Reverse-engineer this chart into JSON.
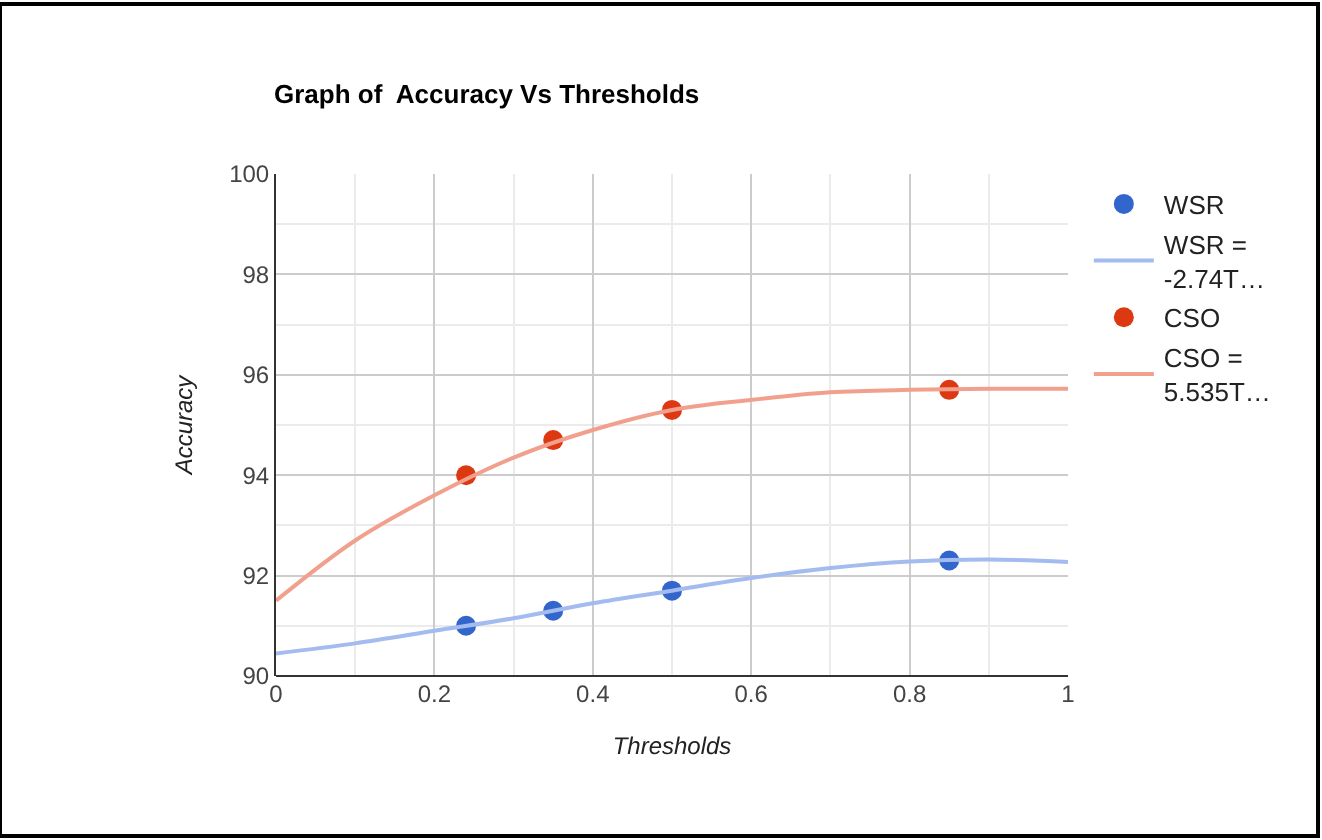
{
  "chart_data": {
    "type": "scatter",
    "title": "Graph of  Accuracy Vs Thresholds",
    "xlabel": "Thresholds",
    "ylabel": "Accuracy",
    "xlim": [
      0,
      1
    ],
    "xticks": [
      0,
      0.2,
      0.4,
      0.6,
      0.8,
      1
    ],
    "ylim": [
      90,
      100
    ],
    "yticks": [
      90,
      92,
      94,
      96,
      98,
      100
    ],
    "grid": true,
    "legend": "right",
    "series": [
      {
        "name": "WSR",
        "marker": "circle",
        "color": "#3366cc",
        "x": [
          0.24,
          0.35,
          0.5,
          0.85
        ],
        "values": [
          91.0,
          91.3,
          91.7,
          92.3
        ]
      },
      {
        "name": "WSR =\n-2.74T…",
        "type": "line",
        "marker": "none",
        "line_style": "solid",
        "color": "#a3bbee",
        "x": [
          0,
          0.1,
          0.2,
          0.3,
          0.4,
          0.5,
          0.6,
          0.7,
          0.8,
          0.9,
          1.0
        ],
        "values": [
          90.45,
          90.65,
          90.9,
          91.15,
          91.45,
          91.7,
          91.95,
          92.15,
          92.28,
          92.32,
          92.27
        ]
      },
      {
        "name": "CSO",
        "marker": "circle",
        "color": "#dc3912",
        "x": [
          0.24,
          0.35,
          0.5,
          0.85
        ],
        "values": [
          94.0,
          94.7,
          95.3,
          95.7
        ]
      },
      {
        "name": "CSO =\n5.535T…",
        "type": "line",
        "marker": "none",
        "line_style": "solid",
        "color": "#f2a08e",
        "x": [
          0,
          0.1,
          0.2,
          0.3,
          0.4,
          0.5,
          0.6,
          0.7,
          0.8,
          0.9,
          1.0
        ],
        "values": [
          91.5,
          92.7,
          93.6,
          94.35,
          94.9,
          95.3,
          95.5,
          95.65,
          95.7,
          95.72,
          95.72
        ]
      }
    ]
  }
}
